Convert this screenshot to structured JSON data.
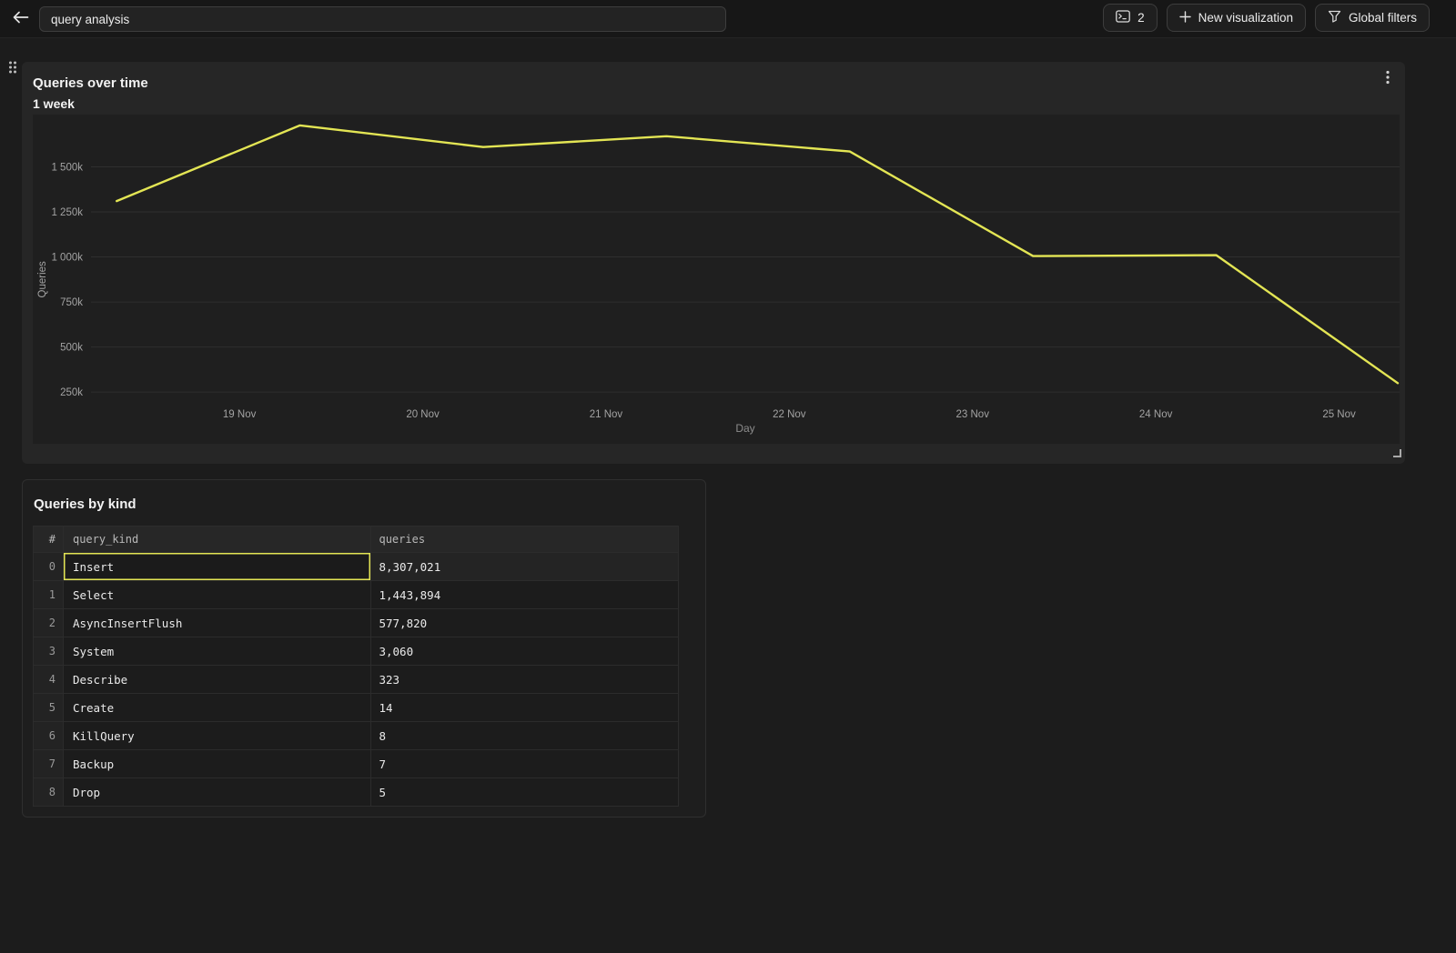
{
  "topbar": {
    "search_value": "query analysis",
    "console_count": "2",
    "new_viz_label": "New visualization",
    "global_filters_label": "Global filters"
  },
  "chart_panel": {
    "title": "Queries over time",
    "subtitle": "1 week"
  },
  "chart_data": {
    "type": "line",
    "title": "Queries over time",
    "subtitle": "1 week",
    "xlabel": "Day",
    "ylabel": "Queries",
    "legend": "none",
    "grid": "horizontal",
    "x_domain_days": [
      18.19,
      25.33
    ],
    "y_domain_k": [
      150,
      1790
    ],
    "x_ticks": [
      {
        "day": 19,
        "label": "19 Nov"
      },
      {
        "day": 20,
        "label": "20 Nov"
      },
      {
        "day": 21,
        "label": "21 Nov"
      },
      {
        "day": 22,
        "label": "22 Nov"
      },
      {
        "day": 23,
        "label": "23 Nov"
      },
      {
        "day": 24,
        "label": "24 Nov"
      },
      {
        "day": 25,
        "label": "25 Nov"
      }
    ],
    "y_ticks": [
      {
        "value_k": 250,
        "label": "250k"
      },
      {
        "value_k": 500,
        "label": "500k"
      },
      {
        "value_k": 750,
        "label": "750k"
      },
      {
        "value_k": 1000,
        "label": "1 000k"
      },
      {
        "value_k": 1250,
        "label": "1 250k"
      },
      {
        "value_k": 1500,
        "label": "1 500k"
      }
    ],
    "series": [
      {
        "name": "Queries",
        "color": "#e3e554",
        "x_days": [
          18.33,
          19.33,
          20.33,
          21.33,
          22.33,
          23.33,
          24.33,
          25.32
        ],
        "values_k": [
          1310,
          1730,
          1610,
          1670,
          1585,
          1005,
          1010,
          300
        ]
      }
    ]
  },
  "table_panel": {
    "title": "Queries by kind",
    "columns": {
      "index": "#",
      "query_kind": "query_kind",
      "queries": "queries"
    },
    "rows": [
      {
        "index": "0",
        "query_kind": "Insert",
        "queries": "8,307,021"
      },
      {
        "index": "1",
        "query_kind": "Select",
        "queries": "1,443,894"
      },
      {
        "index": "2",
        "query_kind": "AsyncInsertFlush",
        "queries": "577,820"
      },
      {
        "index": "3",
        "query_kind": "System",
        "queries": "3,060"
      },
      {
        "index": "4",
        "query_kind": "Describe",
        "queries": "323"
      },
      {
        "index": "5",
        "query_kind": "Create",
        "queries": "14"
      },
      {
        "index": "6",
        "query_kind": "KillQuery",
        "queries": "8"
      },
      {
        "index": "7",
        "query_kind": "Backup",
        "queries": "7"
      },
      {
        "index": "8",
        "query_kind": "Drop",
        "queries": "5"
      }
    ],
    "selected": {
      "row": 0,
      "column": "query_kind"
    }
  },
  "colors": {
    "accent": "#e3e554",
    "page_bg": "#1c1c1c",
    "panel_bg": "#262626",
    "chart_bg": "#1f1f1f",
    "grid": "#2f2f2f",
    "axis_text": "#a3a3a3"
  }
}
